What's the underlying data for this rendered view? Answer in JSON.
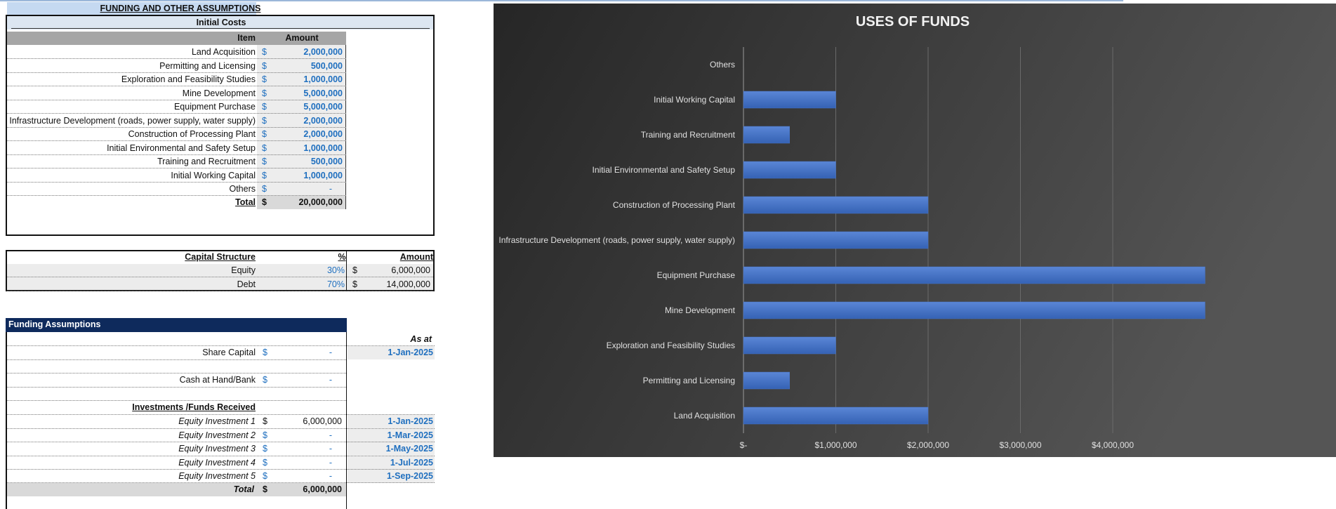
{
  "sheet": {
    "title": "FUNDING AND OTHER ASSUMPTIONS",
    "initial_costs": {
      "title": "Initial Costs",
      "header": [
        "Item",
        "Amount"
      ],
      "rows": [
        [
          "Land Acquisition",
          "$",
          "2,000,000"
        ],
        [
          "Permitting and Licensing",
          "$",
          "500,000"
        ],
        [
          "Exploration and Feasibility Studies",
          "$",
          "1,000,000"
        ],
        [
          "Mine Development",
          "$",
          "5,000,000"
        ],
        [
          "Equipment Purchase",
          "$",
          "5,000,000"
        ],
        [
          "Infrastructure Development (roads, power supply, water supply)",
          "$",
          "2,000,000"
        ],
        [
          "Construction of Processing Plant",
          "$",
          "2,000,000"
        ],
        [
          "Initial Environmental and Safety Setup",
          "$",
          "1,000,000"
        ],
        [
          "Training and Recruitment",
          "$",
          "500,000"
        ],
        [
          "Initial Working Capital",
          "$",
          "1,000,000"
        ],
        [
          "Others",
          "$",
          "-"
        ]
      ],
      "total": [
        "Total",
        "$",
        "20,000,000"
      ]
    },
    "capital_structure": {
      "header": [
        "Capital Structure",
        "%",
        "Amount"
      ],
      "rows": [
        [
          "Equity",
          "30%",
          "$",
          "6,000,000"
        ],
        [
          "Debt",
          "70%",
          "$",
          "14,000,000"
        ]
      ]
    },
    "funding_assumptions": {
      "title": "Funding Assumptions",
      "as_at": "As at",
      "share_capital": [
        "Share Capital",
        "$",
        "-",
        "1-Jan-2025"
      ],
      "cash": [
        "Cash at Hand/Bank",
        "$",
        "-"
      ],
      "investments_title": "Investments /Funds Received",
      "investments": [
        [
          "Equity Investment 1",
          "$",
          "6,000,000",
          "1-Jan-2025"
        ],
        [
          "Equity Investment 2",
          "$",
          "-",
          "1-Mar-2025"
        ],
        [
          "Equity Investment 3",
          "$",
          "-",
          "1-May-2025"
        ],
        [
          "Equity Investment 4",
          "$",
          "-",
          "1-Jul-2025"
        ],
        [
          "Equity Investment 5",
          "$",
          "-",
          "1-Sep-2025"
        ]
      ],
      "total": [
        "Total",
        "$",
        "6,000,000"
      ]
    }
  },
  "chart_data": {
    "type": "bar",
    "orientation": "horizontal",
    "title": "USES OF FUNDS",
    "categories": [
      "Land Acquisition",
      "Permitting and Licensing",
      "Exploration and Feasibility Studies",
      "Mine Development",
      "Equipment Purchase",
      "Infrastructure Development (roads, power supply, water supply)",
      "Construction of Processing Plant",
      "Initial Environmental and Safety Setup",
      "Training and Recruitment",
      "Initial Working Capital",
      "Others"
    ],
    "values": [
      2000000,
      500000,
      1000000,
      5000000,
      5000000,
      2000000,
      2000000,
      1000000,
      500000,
      1000000,
      0
    ],
    "color": "#4472c4",
    "xlim": [
      0,
      6000000
    ],
    "xticks": [
      {
        "value": 0,
        "label": "$-"
      },
      {
        "value": 1000000,
        "label": "$1,000,000"
      },
      {
        "value": 2000000,
        "label": "$2,000,000"
      },
      {
        "value": 3000000,
        "label": "$3,000,000"
      },
      {
        "value": 4000000,
        "label": "$4,000,000"
      }
    ],
    "grid": true
  }
}
